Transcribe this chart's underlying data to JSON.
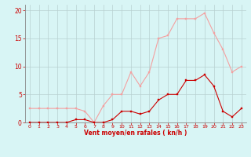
{
  "x": [
    0,
    1,
    2,
    3,
    4,
    5,
    6,
    7,
    8,
    9,
    10,
    11,
    12,
    13,
    14,
    15,
    16,
    17,
    18,
    19,
    20,
    21,
    22,
    23
  ],
  "rafales": [
    2.5,
    2.5,
    2.5,
    2.5,
    2.5,
    2.5,
    2.0,
    0.0,
    3.0,
    5.0,
    5.0,
    9.0,
    6.5,
    9.0,
    15.0,
    15.5,
    18.5,
    18.5,
    18.5,
    19.5,
    16.0,
    13.0,
    9.0,
    10.0
  ],
  "vent_moyen": [
    0.0,
    0.0,
    0.0,
    0.0,
    0.0,
    0.5,
    0.5,
    0.0,
    0.0,
    0.5,
    2.0,
    2.0,
    1.5,
    2.0,
    4.0,
    5.0,
    5.0,
    7.5,
    7.5,
    8.5,
    6.5,
    2.0,
    1.0,
    2.5
  ],
  "color_rafales": "#f4a0a0",
  "color_vent": "#cc0000",
  "background_color": "#d8f5f5",
  "grid_color": "#b8d0d0",
  "axis_color": "#cc0000",
  "xlabel": "Vent moyen/en rafales ( kn/h )",
  "ylim": [
    0,
    21
  ],
  "xlim": [
    -0.5,
    23.5
  ],
  "yticks": [
    0,
    5,
    10,
    15,
    20
  ],
  "xticks": [
    0,
    1,
    2,
    3,
    4,
    5,
    6,
    7,
    8,
    9,
    10,
    11,
    12,
    13,
    14,
    15,
    16,
    17,
    18,
    19,
    20,
    21,
    22,
    23
  ],
  "marker_size": 2.0,
  "line_width": 0.8
}
